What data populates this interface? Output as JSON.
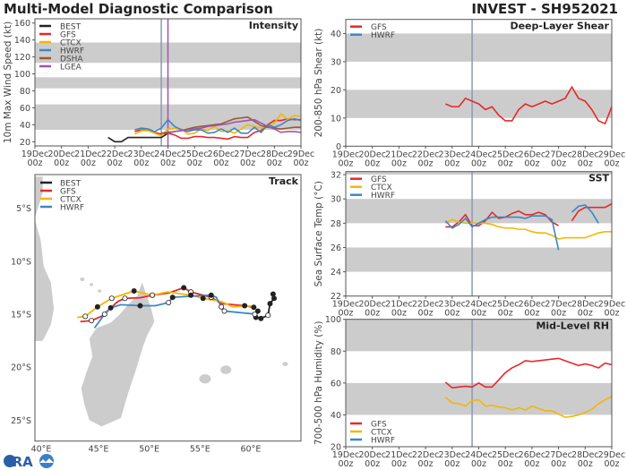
{
  "header": {
    "title": "Multi-Model Diagnostic Comparison",
    "storm": "INVEST - SH952021"
  },
  "logo": {
    "text": "CIRA"
  },
  "colors": {
    "BEST": "#222222",
    "GFS": "#e8282b",
    "CTCX": "#f2b705",
    "HWRF": "#3a87c8",
    "DSHA": "#9a5a2c",
    "LGEA": "#a052b0",
    "band": "#cccccc",
    "init_line": "#8a9ab5",
    "lgea_line": "#a052b0",
    "land": "#cccccc"
  },
  "x_ticks": [
    {
      "d": "19Dec",
      "h": "00z"
    },
    {
      "d": "20Dec",
      "h": "00z"
    },
    {
      "d": "21Dec",
      "h": "00z"
    },
    {
      "d": "22Dec",
      "h": "00z"
    },
    {
      "d": "23Dec",
      "h": "00z"
    },
    {
      "d": "24Dec",
      "h": "00z"
    },
    {
      "d": "25Dec",
      "h": "00z"
    },
    {
      "d": "26Dec",
      "h": "00z"
    },
    {
      "d": "27Dec",
      "h": "00z"
    },
    {
      "d": "28Dec",
      "h": "00z"
    },
    {
      "d": "29Dec",
      "h": "00z"
    }
  ],
  "chart_data": [
    {
      "id": "intensity",
      "type": "line",
      "title": "Intensity",
      "ylabel": "10m Max Wind Speed (kt)",
      "xlim": [
        "19Dec 00z",
        "29Dec 00z"
      ],
      "ylim": [
        15,
        165
      ],
      "yticks": [
        20,
        40,
        60,
        80,
        100,
        120,
        140,
        160
      ],
      "bands": [
        [
          34,
          64
        ],
        [
          83,
          96
        ],
        [
          113,
          137
        ]
      ],
      "vlines": [
        {
          "x": "23Dec 18z",
          "color": "init_line"
        },
        {
          "x": "24Dec 00z",
          "color": "lgea_line"
        }
      ],
      "legend": "top-left",
      "series": [
        {
          "name": "BEST",
          "start": "21Dec 18z",
          "values": [
            25,
            20,
            20,
            25,
            25,
            25,
            25,
            25,
            25,
            30
          ]
        },
        {
          "name": "GFS",
          "start": "22Dec 18z",
          "values": [
            32,
            34,
            33,
            31,
            29,
            30,
            28,
            24,
            24,
            26,
            26,
            25,
            25,
            24,
            23,
            26,
            25,
            25,
            31,
            33,
            40,
            45,
            45,
            47,
            46,
            46
          ]
        },
        {
          "name": "CTCX",
          "start": "22Dec 18z",
          "values": [
            29,
            33,
            33,
            30,
            27,
            35,
            36,
            35,
            29,
            30,
            35,
            33,
            38,
            32,
            33,
            30,
            35,
            40,
            38,
            36,
            38,
            42,
            53,
            46,
            51,
            50
          ]
        },
        {
          "name": "HWRF",
          "start": "22Dec 18z",
          "values": [
            34,
            36,
            35,
            32,
            36,
            46,
            38,
            34,
            32,
            34,
            34,
            30,
            31,
            35,
            31,
            36,
            30,
            30,
            37,
            31,
            40,
            37,
            40,
            45,
            47,
            45
          ]
        },
        {
          "name": "DSHA",
          "start": "23Dec 18z",
          "values": [
            30,
            31,
            32,
            33,
            35,
            37,
            38,
            39,
            40,
            41,
            44,
            47,
            48,
            49,
            44,
            39,
            37,
            36,
            35,
            36,
            37,
            37
          ]
        },
        {
          "name": "LGEA",
          "start": "24Dec 00z",
          "values": [
            30,
            32,
            33,
            34,
            35,
            36,
            38,
            39,
            40,
            41,
            43,
            44,
            45,
            46,
            42,
            38,
            35,
            31,
            32,
            32,
            31
          ]
        }
      ]
    },
    {
      "id": "shear",
      "type": "line",
      "title": "Deep-Layer Shear",
      "ylabel": "200-850 hPa Shear (kt)",
      "xlim": [
        "19Dec 00z",
        "29Dec 00z"
      ],
      "ylim": [
        0,
        45
      ],
      "yticks": [
        0,
        10,
        20,
        30,
        40
      ],
      "bands": [
        [
          10,
          20
        ],
        [
          30,
          40
        ]
      ],
      "vlines": [
        {
          "x": "23Dec 18z",
          "color": "init_line"
        }
      ],
      "legend": "top-left",
      "series": [
        {
          "name": "GFS",
          "start": "22Dec 18z",
          "values": [
            15,
            14,
            14,
            17,
            16,
            15,
            13,
            14,
            11,
            9,
            9,
            13,
            15,
            14,
            15,
            16,
            15,
            16,
            17,
            21,
            17,
            16,
            13,
            9,
            8,
            14
          ]
        },
        {
          "name": "HWRF",
          "start": "22Dec 18z",
          "values": []
        }
      ]
    },
    {
      "id": "sst",
      "type": "line",
      "title": "SST",
      "ylabel": "Sea Surface Temp (°C)",
      "xlim": [
        "19Dec 00z",
        "29Dec 00z"
      ],
      "ylim": [
        22,
        32.25
      ],
      "yticks": [
        22,
        24,
        26,
        28,
        30,
        32
      ],
      "bands": [
        [
          24,
          26
        ],
        [
          28,
          30
        ],
        [
          32,
          34
        ]
      ],
      "vlines": [
        {
          "x": "23Dec 18z",
          "color": "init_line"
        }
      ],
      "legend": "top-left",
      "series": [
        {
          "name": "GFS",
          "start": "22Dec 18z",
          "values": [
            27.7,
            27.7,
            28.1,
            28.7,
            27.8,
            27.8,
            28.2,
            28.9,
            28.4,
            28.5,
            28.8,
            29.0,
            28.7,
            28.7,
            28.9,
            28.7,
            28.1,
            27.8,
            null,
            28.2,
            29.0,
            29.3,
            29.3,
            29.3,
            29.3,
            29.6
          ]
        },
        {
          "name": "CTCX",
          "start": "22Dec 18z",
          "values": [
            28.0,
            28.3,
            28.1,
            28.0,
            28.0,
            28.0,
            28.0,
            27.9,
            27.7,
            27.6,
            27.6,
            27.5,
            27.5,
            27.3,
            27.2,
            27.2,
            27.0,
            26.7,
            26.8,
            26.8,
            26.8,
            26.8,
            27.0,
            27.2,
            27.3,
            27.3
          ]
        },
        {
          "name": "HWRF",
          "start": "22Dec 18z",
          "values": [
            28.2,
            27.6,
            27.9,
            28.4,
            27.7,
            28.0,
            28.3,
            28.5,
            28.5,
            28.5,
            28.5,
            28.5,
            28.4,
            28.6,
            28.6,
            28.6,
            28.3,
            25.8,
            null,
            28.9,
            29.4,
            29.5,
            28.9,
            28.0
          ]
        }
      ]
    },
    {
      "id": "rh",
      "type": "line",
      "title": "Mid-Level RH",
      "ylabel": "700-500 hPa Humidity (%)",
      "xlim": [
        "19Dec 00z",
        "29Dec 00z"
      ],
      "ylim": [
        20,
        100
      ],
      "yticks": [
        20,
        40,
        60,
        80,
        100
      ],
      "bands": [
        [
          40,
          60
        ],
        [
          80,
          100
        ]
      ],
      "vlines": [
        {
          "x": "23Dec 18z",
          "color": "init_line"
        }
      ],
      "legend": "bottom-left",
      "series": [
        {
          "name": "GFS",
          "start": "22Dec 18z",
          "values": [
            60.5,
            57,
            57.5,
            58,
            57.5,
            60,
            57.5,
            57.5,
            62,
            66.5,
            69.5,
            71.5,
            74,
            73.5,
            74,
            74.5,
            75,
            75.5,
            74,
            72.5,
            71,
            72,
            71,
            69.5,
            72.5,
            71.5
          ]
        },
        {
          "name": "CTCX",
          "start": "22Dec 18z",
          "values": [
            51,
            47.5,
            47,
            45.5,
            49,
            49.5,
            45.5,
            46,
            45,
            44.5,
            43,
            44.5,
            43,
            45.5,
            44,
            42.5,
            42.5,
            40.5,
            38.5,
            39,
            40,
            41.5,
            43.5,
            47,
            49.5,
            51.5
          ]
        },
        {
          "name": "HWRF",
          "start": "22Dec 18z",
          "values": []
        }
      ]
    },
    {
      "id": "track",
      "type": "map",
      "title": "Track",
      "lon_ticks": [
        "40°E",
        "45°E",
        "50°E",
        "55°E",
        "60°E"
      ],
      "lat_ticks": [
        "5°S",
        "10°S",
        "15°S",
        "20°S",
        "25°S"
      ],
      "legend": "top-left",
      "series": [
        {
          "name": "BEST",
          "points": [
            [
              62.2,
              -13.1
            ],
            [
              62.3,
              -13.5
            ],
            [
              61.9,
              -14.0
            ],
            [
              61.7,
              -15.1
            ],
            [
              61.0,
              -15.4
            ],
            [
              60.5,
              -15.3
            ],
            [
              60.4,
              -15.0
            ]
          ],
          "markers": "fffoffo"
        },
        {
          "name": "GFS",
          "points": [
            [
              60.3,
              -14.35
            ],
            [
              59.4,
              -14.2
            ],
            [
              57.1,
              -14.0
            ],
            [
              56.1,
              -13.4
            ],
            [
              54.1,
              -12.9
            ],
            [
              53.4,
              -12.5
            ],
            [
              51.9,
              -13.0
            ],
            [
              50.3,
              -13.2
            ],
            [
              49.1,
              -13.45
            ],
            [
              47.6,
              -13.5
            ],
            [
              46.9,
              -13.8
            ],
            [
              46.2,
              -14.4
            ],
            [
              45.3,
              -15.2
            ],
            [
              44.3,
              -15.6
            ],
            [
              43.2,
              -15.7
            ]
          ],
          "markers": "ff.oof.f.o..ro."
        },
        {
          "name": "CTCX",
          "points": [
            [
              60.5,
              -14.2
            ],
            [
              58.2,
              -14.3
            ],
            [
              57.1,
              -13.8
            ],
            [
              55.3,
              -13.5
            ],
            [
              54.1,
              -13.2
            ],
            [
              51.8,
              -12.9
            ],
            [
              50.3,
              -13.2
            ],
            [
              48.5,
              -12.8
            ],
            [
              46.3,
              -13.5
            ],
            [
              44.9,
              -14.3
            ],
            [
              43.7,
              -15.2
            ],
            [
              42.9,
              -15.3
            ]
          ],
          "markers": "...ff.ofofo."
        },
        {
          "name": "HWRF",
          "points": [
            [
              60.7,
              -14.7
            ],
            [
              60.6,
              -15.0
            ],
            [
              57.4,
              -14.7
            ],
            [
              57.1,
              -14.3
            ],
            [
              56.6,
              -13.4
            ],
            [
              56.1,
              -13.2
            ],
            [
              54.1,
              -13.3
            ],
            [
              52.3,
              -13.4
            ],
            [
              51.9,
              -13.9
            ],
            [
              50.6,
              -14.2
            ],
            [
              49.1,
              -14.2
            ],
            [
              47.2,
              -14.1
            ],
            [
              46.2,
              -14.4
            ],
            [
              45.6,
              -15.0
            ],
            [
              44.6,
              -16.3
            ]
          ],
          "markers": "f.oo.f.fo.f.fo."
        }
      ]
    }
  ]
}
